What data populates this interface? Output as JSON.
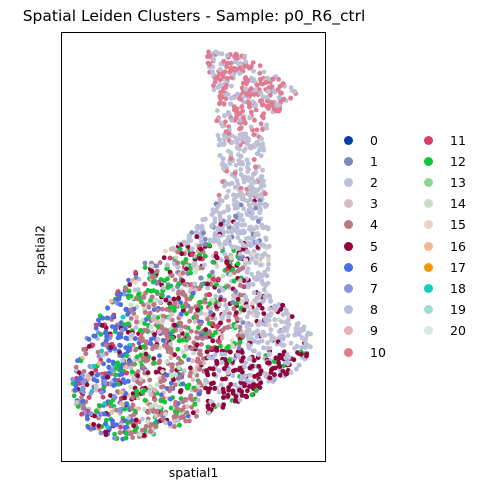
{
  "chart_data": {
    "type": "scatter",
    "title": "Spatial Leiden Clusters - Sample: p0_R6_ctrl",
    "xlabel": "spatial1",
    "ylabel": "spatial2",
    "grid": false,
    "ticks_shown": false,
    "legend_position": "right",
    "legend_columns": 2,
    "series": [
      {
        "name": "0",
        "color": "#023fa5"
      },
      {
        "name": "1",
        "color": "#7d87b9"
      },
      {
        "name": "2",
        "color": "#bec1d4"
      },
      {
        "name": "3",
        "color": "#d6bcc0"
      },
      {
        "name": "4",
        "color": "#bb7784"
      },
      {
        "name": "5",
        "color": "#8e063b"
      },
      {
        "name": "6",
        "color": "#4a6fe3"
      },
      {
        "name": "7",
        "color": "#8595e1"
      },
      {
        "name": "8",
        "color": "#b5bbe3"
      },
      {
        "name": "9",
        "color": "#e6afb9"
      },
      {
        "name": "10",
        "color": "#e07b91"
      },
      {
        "name": "11",
        "color": "#d33f6a"
      },
      {
        "name": "12",
        "color": "#11c638"
      },
      {
        "name": "13",
        "color": "#8dd593"
      },
      {
        "name": "14",
        "color": "#c6dec7"
      },
      {
        "name": "15",
        "color": "#ead3c6"
      },
      {
        "name": "16",
        "color": "#f0b98d"
      },
      {
        "name": "17",
        "color": "#ef9708"
      },
      {
        "name": "18",
        "color": "#0fcfc0"
      },
      {
        "name": "19",
        "color": "#9cded6"
      },
      {
        "name": "20",
        "color": "#d5eae7"
      }
    ]
  }
}
